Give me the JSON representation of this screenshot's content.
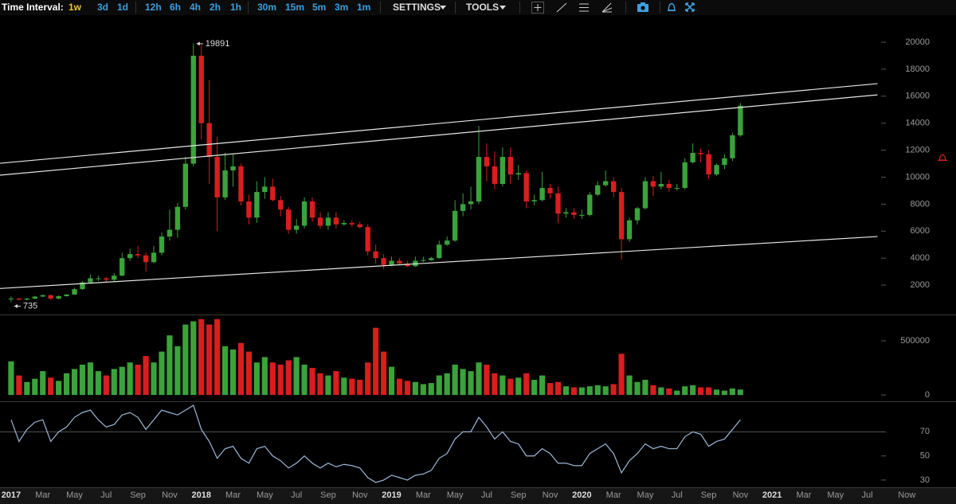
{
  "toolbar": {
    "label": "Time Interval:",
    "intervals": [
      "1w",
      "3d",
      "1d",
      "12h",
      "6h",
      "4h",
      "2h",
      "1h",
      "30m",
      "15m",
      "5m",
      "3m",
      "1m"
    ],
    "active": 0,
    "menus": [
      "SETTINGS",
      "TOOLS"
    ]
  },
  "chart_data": [
    {
      "type": "candlestick",
      "up_color": "#3aa33a",
      "down_color": "#d81e1e",
      "x": [
        0,
        0.5,
        1,
        1.5,
        2,
        2.5,
        3,
        3.5,
        4,
        4.5,
        5,
        5.5,
        6,
        6.5,
        7,
        7.5,
        8,
        8.5,
        9,
        9.5,
        10,
        10.5,
        11,
        11.5,
        12,
        12.5,
        13,
        13.5,
        14,
        14.5,
        15,
        15.5,
        16,
        16.5,
        17,
        17.5,
        18,
        18.5,
        19,
        19.5,
        20,
        20.5,
        21,
        21.5,
        22,
        22.5,
        23,
        23.5,
        24,
        24.5,
        25,
        25.5,
        26,
        26.5,
        27,
        27.5,
        28,
        28.5,
        29,
        29.5,
        30,
        30.5,
        31,
        31.5,
        32,
        32.5,
        33,
        33.5,
        34,
        34.5,
        35,
        35.5,
        36,
        36.5,
        37,
        37.5,
        38,
        38.5,
        39,
        39.5,
        40,
        40.5,
        41,
        41.5,
        42,
        42.5,
        43,
        43.5,
        44,
        44.5,
        45,
        45.5,
        46
      ],
      "open": [
        970,
        1000,
        920,
        1000,
        1150,
        1250,
        1000,
        1180,
        1300,
        1700,
        2200,
        2500,
        2500,
        2400,
        2700,
        4000,
        4300,
        4200,
        3700,
        4400,
        5600,
        6100,
        7800,
        11000,
        19000,
        14000,
        11500,
        8500,
        10500,
        10800,
        8200,
        7000,
        8900,
        9300,
        8300,
        7600,
        6100,
        6400,
        8200,
        7000,
        6400,
        7000,
        6500,
        6600,
        6500,
        6300,
        4500,
        4000,
        3500,
        3800,
        3600,
        3400,
        3800,
        3850,
        4000,
        5000,
        5300,
        7500,
        8000,
        8200,
        11500,
        10800,
        9500,
        11500,
        10200,
        10300,
        8200,
        8300,
        9200,
        8800,
        7300,
        7400,
        7200,
        7200,
        8700,
        9400,
        9700,
        8900,
        5400,
        6800,
        7700,
        9700,
        9300,
        9500,
        9200,
        9200,
        11100,
        11800,
        11700,
        10200,
        10900,
        11400,
        13100
      ],
      "high": [
        1150,
        1050,
        1050,
        1200,
        1300,
        1300,
        1250,
        1350,
        1800,
        2300,
        2800,
        2700,
        2600,
        2900,
        4400,
        4700,
        4900,
        4400,
        4900,
        5900,
        7600,
        8100,
        11500,
        19891,
        19800,
        17200,
        13000,
        11800,
        11700,
        11000,
        8700,
        9700,
        10000,
        9900,
        8600,
        7800,
        6900,
        8500,
        8500,
        7400,
        7400,
        7400,
        6800,
        6800,
        6700,
        6500,
        5000,
        4300,
        4100,
        4000,
        3800,
        4100,
        4100,
        4100,
        5300,
        5600,
        8300,
        8800,
        9300,
        13800,
        12500,
        11900,
        12200,
        12200,
        10900,
        10500,
        8700,
        10400,
        9500,
        9300,
        7700,
        7700,
        7600,
        8900,
        9700,
        10500,
        10000,
        9200,
        7000,
        7800,
        10000,
        10100,
        10400,
        9800,
        9500,
        11400,
        12500,
        12100,
        12000,
        11000,
        11700,
        13300,
        15500
      ],
      "low": [
        735,
        880,
        880,
        950,
        1100,
        900,
        950,
        1150,
        1280,
        1650,
        2100,
        2300,
        2200,
        2250,
        2650,
        3800,
        4000,
        3000,
        3600,
        4200,
        5300,
        5500,
        7600,
        10800,
        12800,
        9500,
        6000,
        8300,
        9300,
        7900,
        6500,
        6600,
        8400,
        8200,
        7100,
        5800,
        5800,
        6200,
        6700,
        6200,
        6100,
        6200,
        6400,
        6300,
        6200,
        4200,
        3600,
        3200,
        3400,
        3500,
        3350,
        3350,
        3700,
        3800,
        3950,
        4900,
        5200,
        7100,
        7600,
        8000,
        9700,
        9100,
        9300,
        9500,
        9800,
        7700,
        7900,
        8200,
        8400,
        6600,
        7000,
        6900,
        6900,
        7100,
        8600,
        9300,
        8500,
        3900,
        5200,
        6500,
        7600,
        8600,
        9100,
        8900,
        9000,
        9100,
        11000,
        11100,
        9900,
        10100,
        10600,
        11200,
        13000
      ],
      "close": [
        1000,
        920,
        1000,
        1150,
        1250,
        1000,
        1180,
        1300,
        1700,
        2200,
        2500,
        2500,
        2400,
        2700,
        4000,
        4300,
        4200,
        3700,
        4400,
        5600,
        6100,
        7800,
        11000,
        19000,
        14000,
        11500,
        8500,
        10500,
        10800,
        8200,
        7000,
        8900,
        9300,
        8300,
        7600,
        6100,
        6400,
        8200,
        7000,
        6400,
        7000,
        6500,
        6600,
        6500,
        6300,
        4500,
        4000,
        3500,
        3800,
        3600,
        3400,
        3800,
        3850,
        4000,
        5000,
        5300,
        7500,
        8000,
        8200,
        11500,
        10800,
        9500,
        11500,
        10200,
        10300,
        8200,
        8300,
        9200,
        8800,
        7300,
        7400,
        7200,
        7200,
        8700,
        9400,
        9700,
        8900,
        5400,
        6800,
        7700,
        9700,
        9300,
        9500,
        9200,
        9200,
        11100,
        11800,
        11700,
        10200,
        10900,
        11400,
        13100,
        15300
      ],
      "high_label": "19891",
      "low_label": "735",
      "trendlines": [
        {
          "x": [
            -0.7,
            54.65
          ],
          "values": [
            1750,
            5600
          ]
        },
        {
          "x": [
            -0.7,
            54.65
          ],
          "values": [
            11030,
            16930
          ]
        },
        {
          "x": [
            -0.7,
            54.65
          ],
          "values": [
            10145,
            16100
          ]
        }
      ],
      "trendline_color": "#e6e6e6",
      "xlim": [
        -0.7,
        59.6
      ],
      "xticks": [
        {
          "value": 0,
          "label": "2017"
        },
        {
          "value": 2,
          "label": "Mar"
        },
        {
          "value": 4,
          "label": "May"
        },
        {
          "value": 6,
          "label": "Jul"
        },
        {
          "value": 8,
          "label": "Sep"
        },
        {
          "value": 10,
          "label": "Nov"
        },
        {
          "value": 12,
          "label": "2018"
        },
        {
          "value": 14,
          "label": "Mar"
        },
        {
          "value": 16,
          "label": "May"
        },
        {
          "value": 18,
          "label": "Jul"
        },
        {
          "value": 20,
          "label": "Sep"
        },
        {
          "value": 22,
          "label": "Nov"
        },
        {
          "value": 24,
          "label": "2019"
        },
        {
          "value": 26,
          "label": "Mar"
        },
        {
          "value": 28,
          "label": "May"
        },
        {
          "value": 30,
          "label": "Jul"
        },
        {
          "value": 32,
          "label": "Sep"
        },
        {
          "value": 34,
          "label": "Nov"
        },
        {
          "value": 36,
          "label": "2020"
        },
        {
          "value": 38,
          "label": "Mar"
        },
        {
          "value": 40,
          "label": "May"
        },
        {
          "value": 42,
          "label": "Jul"
        },
        {
          "value": 44,
          "label": "Sep"
        },
        {
          "value": 46,
          "label": "Nov"
        },
        {
          "value": 48,
          "label": "2021"
        },
        {
          "value": 50,
          "label": "Mar"
        },
        {
          "value": 52,
          "label": "May"
        },
        {
          "value": 54,
          "label": "Jul"
        },
        {
          "value": 56.5,
          "label": "Now"
        }
      ],
      "ylim": [
        -180,
        21950
      ],
      "yticks": [
        2000,
        4000,
        6000,
        8000,
        10000,
        12000,
        14000,
        16000,
        18000,
        20000
      ]
    },
    {
      "type": "bar",
      "values": [
        310000,
        180000,
        120000,
        150000,
        220000,
        160000,
        130000,
        200000,
        240000,
        280000,
        300000,
        220000,
        180000,
        240000,
        260000,
        300000,
        280000,
        360000,
        300000,
        400000,
        550000,
        450000,
        650000,
        680000,
        700000,
        650000,
        700000,
        450000,
        420000,
        480000,
        400000,
        300000,
        350000,
        300000,
        280000,
        320000,
        350000,
        280000,
        250000,
        200000,
        180000,
        220000,
        160000,
        150000,
        140000,
        300000,
        620000,
        400000,
        260000,
        150000,
        130000,
        120000,
        100000,
        110000,
        180000,
        200000,
        280000,
        240000,
        220000,
        300000,
        280000,
        200000,
        180000,
        150000,
        160000,
        200000,
        140000,
        180000,
        110000,
        120000,
        80000,
        70000,
        70000,
        80000,
        90000,
        80000,
        100000,
        380000,
        180000,
        120000,
        140000,
        90000,
        70000,
        60000,
        40000,
        80000,
        90000,
        70000,
        70000,
        50000,
        40000,
        60000,
        50000
      ],
      "ylim": [
        -51000,
        728000
      ],
      "yticks": [
        0,
        500000
      ]
    },
    {
      "type": "line",
      "color": "#9bb8d8",
      "values": [
        80,
        62,
        72,
        78,
        80,
        62,
        70,
        74,
        82,
        86,
        88,
        80,
        74,
        76,
        84,
        86,
        82,
        72,
        80,
        88,
        86,
        84,
        88,
        92,
        72,
        62,
        48,
        56,
        58,
        48,
        44,
        56,
        58,
        50,
        46,
        40,
        44,
        50,
        44,
        40,
        44,
        41,
        43,
        42,
        40,
        32,
        28,
        30,
        34,
        32,
        30,
        34,
        35,
        38,
        48,
        52,
        64,
        70,
        70,
        82,
        74,
        64,
        70,
        62,
        60,
        50,
        50,
        56,
        52,
        44,
        44,
        42,
        42,
        52,
        56,
        60,
        52,
        36,
        46,
        52,
        60,
        56,
        58,
        56,
        56,
        66,
        70,
        68,
        58,
        62,
        64,
        72,
        80
      ],
      "ylim": [
        24,
        94
      ],
      "yticks": [
        30,
        50,
        70
      ],
      "guide_lines": [
        70
      ]
    }
  ]
}
